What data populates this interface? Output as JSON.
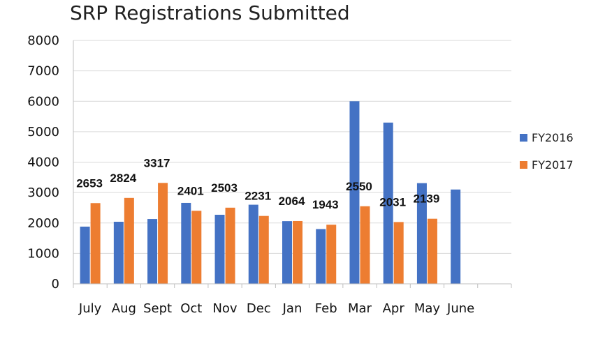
{
  "chart_data": {
    "type": "bar",
    "title": "SRP Registrations Submitted",
    "xlabel": "",
    "ylabel": "",
    "ylim": [
      0,
      8000
    ],
    "yticks": [
      0,
      1000,
      2000,
      3000,
      4000,
      5000,
      6000,
      7000,
      8000
    ],
    "categories": [
      "July",
      "Aug",
      "Sept",
      "Oct",
      "Nov",
      "Dec",
      "Jan",
      "Feb",
      "Mar",
      "Apr",
      "May",
      "June"
    ],
    "series": [
      {
        "name": "FY2016",
        "color": "#4472C4",
        "values": [
          1880,
          2040,
          2130,
          2660,
          2270,
          2600,
          2060,
          1800,
          6000,
          5300,
          3310,
          3100
        ]
      },
      {
        "name": "FY2017",
        "color": "#ED7D31",
        "values": [
          2653,
          2824,
          3317,
          2401,
          2503,
          2231,
          2064,
          1943,
          2550,
          2031,
          2139,
          null
        ],
        "data_labels": [
          "2653",
          "2824",
          "3317",
          "2401",
          "2503",
          "2231",
          "2064",
          "1943",
          "2550",
          "2031",
          "2139",
          null
        ]
      }
    ],
    "grid": true,
    "legend_position": "right"
  }
}
